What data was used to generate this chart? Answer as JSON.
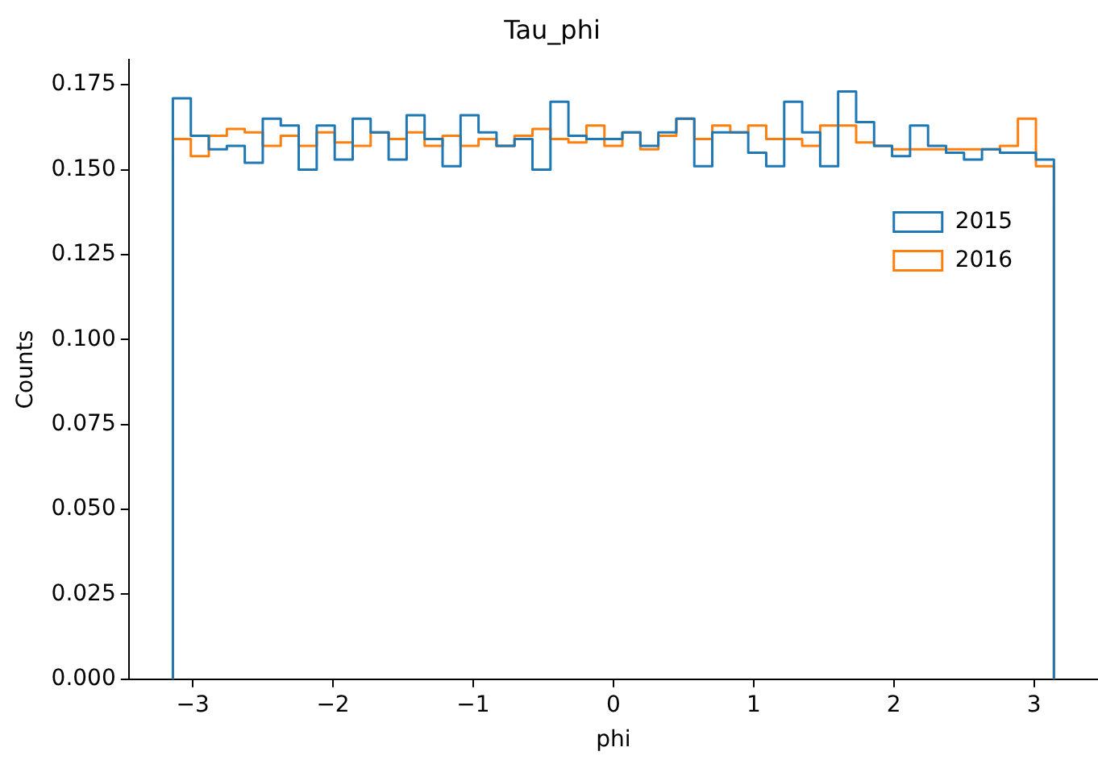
{
  "chart_data": {
    "type": "histogram",
    "title": "Tau_phi",
    "xlabel": "phi",
    "ylabel": "Counts",
    "bins": [
      -3.1416,
      -3.0134,
      -2.8851,
      -2.7569,
      -2.6287,
      -2.5005,
      -2.3722,
      -2.244,
      -2.1158,
      -1.9875,
      -1.8593,
      -1.7311,
      -1.6029,
      -1.4746,
      -1.3464,
      -1.2182,
      -1.0899,
      -0.9617,
      -0.8335,
      -0.7052,
      -0.577,
      -0.4488,
      -0.3206,
      -0.1923,
      -0.0641,
      0.0641,
      0.1923,
      0.3206,
      0.4488,
      0.577,
      0.7052,
      0.8335,
      0.9617,
      1.0899,
      1.2182,
      1.3464,
      1.4746,
      1.6029,
      1.7311,
      1.8593,
      1.9875,
      2.1158,
      2.244,
      2.3722,
      2.5005,
      2.6287,
      2.7569,
      2.8851,
      3.0134,
      3.1416
    ],
    "series": [
      {
        "name": "2015",
        "color": "#1f77b4",
        "values": [
          0.171,
          0.16,
          0.156,
          0.157,
          0.152,
          0.165,
          0.163,
          0.15,
          0.163,
          0.153,
          0.165,
          0.161,
          0.153,
          0.166,
          0.159,
          0.151,
          0.166,
          0.161,
          0.157,
          0.159,
          0.15,
          0.17,
          0.16,
          0.159,
          0.159,
          0.161,
          0.157,
          0.161,
          0.165,
          0.151,
          0.161,
          0.161,
          0.155,
          0.151,
          0.17,
          0.161,
          0.151,
          0.173,
          0.164,
          0.157,
          0.154,
          0.163,
          0.157,
          0.155,
          0.153,
          0.156,
          0.155,
          0.155,
          0.153
        ]
      },
      {
        "name": "2016",
        "color": "#ff7f0e",
        "values": [
          0.159,
          0.154,
          0.16,
          0.162,
          0.161,
          0.157,
          0.16,
          0.157,
          0.161,
          0.158,
          0.157,
          0.161,
          0.159,
          0.161,
          0.157,
          0.16,
          0.157,
          0.159,
          0.157,
          0.16,
          0.162,
          0.159,
          0.158,
          0.163,
          0.157,
          0.161,
          0.156,
          0.16,
          0.165,
          0.159,
          0.163,
          0.161,
          0.163,
          0.159,
          0.159,
          0.157,
          0.163,
          0.163,
          0.158,
          0.157,
          0.156,
          0.156,
          0.156,
          0.156,
          0.156,
          0.156,
          0.157,
          0.165,
          0.151
        ]
      }
    ],
    "xlim": [
      -3.456,
      3.456
    ],
    "ylim": [
      0,
      0.1823
    ],
    "xticks": [
      {
        "value": -3,
        "label": "−3"
      },
      {
        "value": -2,
        "label": "−2"
      },
      {
        "value": -1,
        "label": "−1"
      },
      0,
      1,
      2,
      3
    ],
    "yticks": [
      {
        "value": 0,
        "label": "0.000"
      },
      {
        "value": 0.025,
        "label": "0.025"
      },
      {
        "value": 0.05,
        "label": "0.050"
      },
      {
        "value": 0.075,
        "label": "0.075"
      },
      {
        "value": 0.1,
        "label": "0.100"
      },
      {
        "value": 0.125,
        "label": "0.125"
      },
      {
        "value": 0.15,
        "label": "0.150"
      },
      {
        "value": 0.175,
        "label": "0.175"
      }
    ],
    "legend": "right",
    "grid": false
  }
}
